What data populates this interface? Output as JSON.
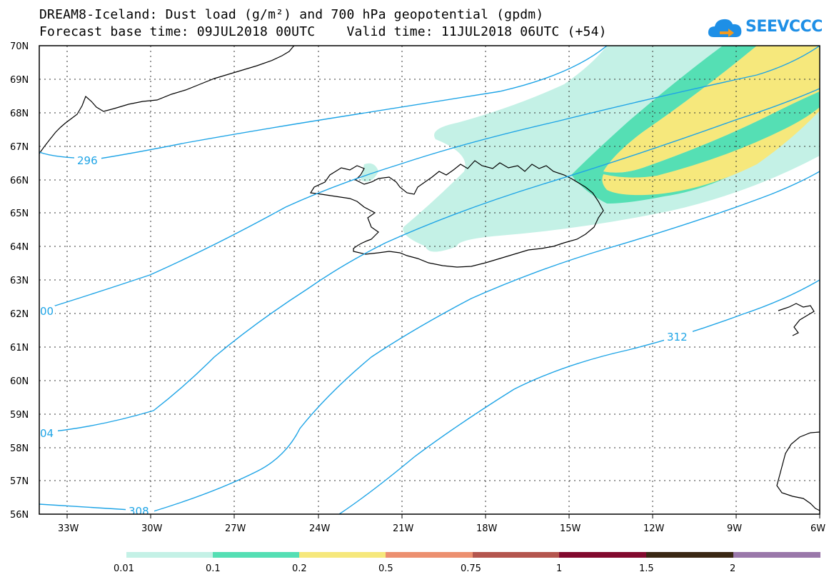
{
  "header": {
    "title_line1": "DREAM8-Iceland: Dust load (g/m²) and 700 hPa geopotential (gpdm)",
    "title_line2": "Forecast base time: 09JUL2018 00UTC    Valid time: 11JUL2018 06UTC (+54)"
  },
  "logo": {
    "text": "SEEVCCC",
    "icon": "cloud-arrow-icon",
    "color": "#1e8fe6"
  },
  "map": {
    "lat_labels": [
      "56N",
      "57N",
      "58N",
      "59N",
      "60N",
      "61N",
      "62N",
      "63N",
      "64N",
      "65N",
      "66N",
      "67N",
      "68N",
      "69N",
      "70N"
    ],
    "lon_labels": [
      "33W",
      "30W",
      "27W",
      "24W",
      "21W",
      "18W",
      "15W",
      "12W",
      "9W",
      "6W"
    ],
    "contour_labels": [
      "296",
      "00",
      "04",
      "308",
      "312"
    ],
    "contour_color": "#1ea4e6"
  },
  "legend": {
    "ticks": [
      "0.01",
      "0.1",
      "0.2",
      "0.5",
      "0.75",
      "1",
      "1.5",
      "2"
    ],
    "colors": [
      "#c4f1e6",
      "#55dfb4",
      "#f6e87c",
      "#ec9070",
      "#b4564e",
      "#820a2e",
      "#3a2814",
      "#9a78aa"
    ]
  }
}
